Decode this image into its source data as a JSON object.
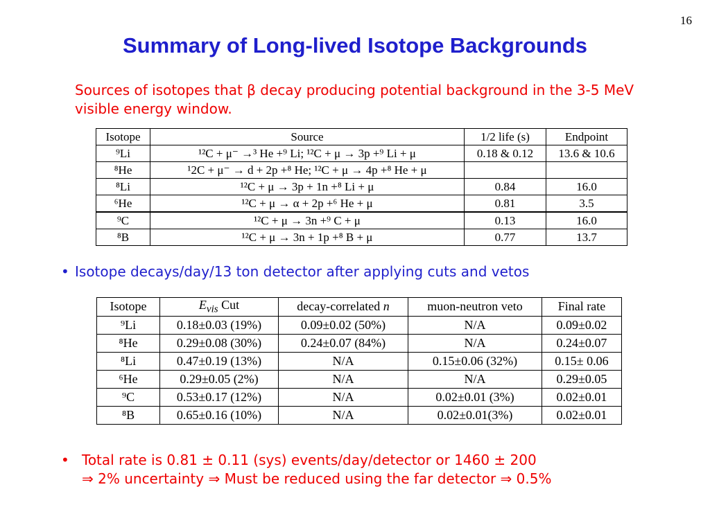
{
  "page_number": "16",
  "title": "Summary of Long-lived Isotope Backgrounds",
  "bullets": {
    "b1": "Sources of isotopes that β decay producing potential background in the 3-5 MeV visible energy window.",
    "b2": "Isotope decays/day/13 ton detector after applying cuts and vetos",
    "b3_line1": "Total rate is 0.81 ± 0.11 (sys) events/day/detector or 1460 ± 200",
    "b3_arrow": "⇒",
    "b3_part1": "2% uncertainty",
    "b3_part2": "Must be reduced using the far detector",
    "b3_part3": "0.5%"
  },
  "source_table": {
    "headers": [
      "Isotope",
      "Source",
      "1/2 life (s)",
      "Endpoint"
    ],
    "rows": [
      {
        "iso": "⁹Li",
        "source": "¹²C + μ⁻ →³ He +⁹ Li; ¹²C + μ → 3p +⁹ Li + μ",
        "life": "0.18 & 0.12",
        "end": "13.6 & 10.6"
      },
      {
        "iso": "⁸He",
        "source": "¹2C + μ⁻ → d + 2p +⁸ He; ¹²C + μ → 4p +⁸ He + μ",
        "life": "",
        "end": ""
      },
      {
        "iso": "⁸Li",
        "source": "¹²C + μ → 3p + 1n +⁸ Li + μ",
        "life": "0.84",
        "end": "16.0"
      },
      {
        "iso": "⁶He",
        "source": "¹²C + μ → α + 2p +⁶ He + μ",
        "life": "0.81",
        "end": "3.5"
      },
      {
        "iso": "⁹C",
        "source": "¹²C + μ → 3n +⁹ C + μ",
        "life": "0.13",
        "end": "16.0"
      },
      {
        "iso": "⁸B",
        "source": "¹²C + μ → 3n + 1p +⁸ B + μ",
        "life": "0.77",
        "end": "13.7"
      }
    ]
  },
  "rate_table": {
    "headers": [
      "Isotope",
      "E",
      "vis",
      "Cut",
      "decay-correlated",
      "n",
      "muon-neutron veto",
      "Final rate"
    ],
    "rows": [
      {
        "iso": "⁹Li",
        "ev": "0.18±0.03 (19%)",
        "dc": "0.09±0.02 (50%)",
        "mn": "N/A",
        "fr": "0.09±0.02"
      },
      {
        "iso": "⁸He",
        "ev": "0.29±0.08 (30%)",
        "dc": "0.24±0.07 (84%)",
        "mn": "N/A",
        "fr": "0.24±0.07"
      },
      {
        "iso": "⁸Li",
        "ev": "0.47±0.19 (13%)",
        "dc": "N/A",
        "mn": "0.15±0.06 (32%)",
        "fr": "0.15± 0.06"
      },
      {
        "iso": "⁶He",
        "ev": "0.29±0.05 (2%)",
        "dc": "N/A",
        "mn": "N/A",
        "fr": "0.29±0.05"
      },
      {
        "iso": "⁹C",
        "ev": "0.53±0.17 (12%)",
        "dc": "N/A",
        "mn": "0.02±0.01 (3%)",
        "fr": "0.02±0.01"
      },
      {
        "iso": "⁸B",
        "ev": "0.65±0.16 (10%)",
        "dc": "N/A",
        "mn": "0.02±0.01(3%)",
        "fr": "0.02±0.01"
      }
    ]
  },
  "colors": {
    "title": "#1f1fcc",
    "red_text": "#ee0000",
    "blue_text": "#1f1fcc"
  }
}
